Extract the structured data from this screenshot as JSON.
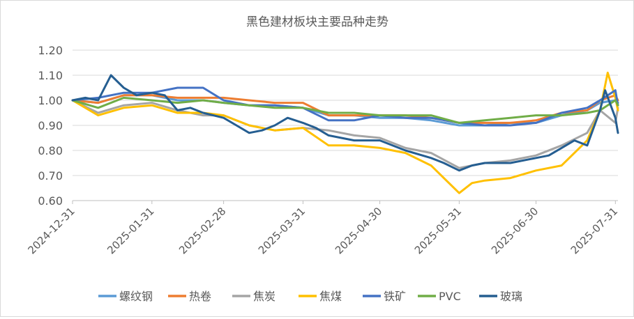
{
  "chart_data": {
    "type": "line",
    "title": "黑色建材板块主要品种走势",
    "xlabel": "",
    "ylabel": "",
    "ylim": [
      0.6,
      1.2
    ],
    "yticks": [
      "0.60",
      "0.70",
      "0.80",
      "0.90",
      "1.00",
      "1.10",
      "1.20"
    ],
    "xlim": [
      "2024-12-31",
      "2025-08-01"
    ],
    "xticks": [
      "2024-12-31",
      "2025-01-31",
      "2025-02-28",
      "2025-03-31",
      "2025-04-30",
      "2025-05-31",
      "2025-06-30",
      "2025-07-31"
    ],
    "grid": "horizontal",
    "legend_position": "bottom",
    "series": [
      {
        "name": "螺纹钢",
        "color": "#5b9bd5",
        "x": [
          "2024-12-31",
          "2025-01-10",
          "2025-01-20",
          "2025-01-31",
          "2025-02-10",
          "2025-02-20",
          "2025-02-28",
          "2025-03-10",
          "2025-03-20",
          "2025-03-31",
          "2025-04-10",
          "2025-04-20",
          "2025-04-30",
          "2025-05-10",
          "2025-05-20",
          "2025-05-31",
          "2025-06-10",
          "2025-06-20",
          "2025-06-30",
          "2025-07-10",
          "2025-07-20",
          "2025-07-25",
          "2025-07-31",
          "2025-08-01"
        ],
        "values": [
          1.0,
          0.99,
          1.02,
          1.02,
          1.0,
          1.0,
          0.99,
          0.98,
          0.98,
          0.97,
          0.94,
          0.94,
          0.93,
          0.93,
          0.92,
          0.9,
          0.9,
          0.91,
          0.91,
          0.94,
          0.96,
          0.99,
          1.0,
          0.99
        ]
      },
      {
        "name": "热卷",
        "color": "#ed7d31",
        "x": [
          "2024-12-31",
          "2025-01-10",
          "2025-01-20",
          "2025-01-31",
          "2025-02-10",
          "2025-02-20",
          "2025-02-28",
          "2025-03-10",
          "2025-03-20",
          "2025-03-31",
          "2025-04-10",
          "2025-04-20",
          "2025-04-30",
          "2025-05-10",
          "2025-05-20",
          "2025-05-31",
          "2025-06-10",
          "2025-06-20",
          "2025-06-30",
          "2025-07-10",
          "2025-07-20",
          "2025-07-25",
          "2025-07-31",
          "2025-08-01"
        ],
        "values": [
          1.0,
          0.99,
          1.02,
          1.02,
          1.01,
          1.01,
          1.01,
          1.0,
          0.99,
          0.99,
          0.94,
          0.94,
          0.94,
          0.94,
          0.93,
          0.91,
          0.91,
          0.91,
          0.92,
          0.95,
          0.96,
          1.0,
          1.02,
          1.0
        ]
      },
      {
        "name": "焦炭",
        "color": "#a5a5a5",
        "x": [
          "2024-12-31",
          "2025-01-10",
          "2025-01-20",
          "2025-01-31",
          "2025-02-10",
          "2025-02-20",
          "2025-02-28",
          "2025-03-10",
          "2025-03-20",
          "2025-03-31",
          "2025-04-10",
          "2025-04-20",
          "2025-04-30",
          "2025-05-10",
          "2025-05-20",
          "2025-05-31",
          "2025-06-10",
          "2025-06-20",
          "2025-06-30",
          "2025-07-10",
          "2025-07-20",
          "2025-07-25",
          "2025-07-31",
          "2025-08-01"
        ],
        "values": [
          1.0,
          0.95,
          0.98,
          0.99,
          0.96,
          0.94,
          0.94,
          0.9,
          0.88,
          0.89,
          0.88,
          0.86,
          0.85,
          0.81,
          0.79,
          0.73,
          0.75,
          0.76,
          0.78,
          0.82,
          0.87,
          0.96,
          0.91,
          0.97
        ]
      },
      {
        "name": "焦煤",
        "color": "#ffc000",
        "x": [
          "2024-12-31",
          "2025-01-10",
          "2025-01-20",
          "2025-01-31",
          "2025-02-10",
          "2025-02-20",
          "2025-02-28",
          "2025-03-10",
          "2025-03-20",
          "2025-03-31",
          "2025-04-10",
          "2025-04-20",
          "2025-04-30",
          "2025-05-10",
          "2025-05-20",
          "2025-05-31",
          "2025-06-05",
          "2025-06-10",
          "2025-06-20",
          "2025-06-30",
          "2025-07-10",
          "2025-07-20",
          "2025-07-25",
          "2025-07-28",
          "2025-07-31",
          "2025-08-01"
        ],
        "values": [
          1.0,
          0.94,
          0.97,
          0.98,
          0.95,
          0.95,
          0.94,
          0.9,
          0.88,
          0.89,
          0.82,
          0.82,
          0.81,
          0.79,
          0.74,
          0.63,
          0.67,
          0.68,
          0.69,
          0.72,
          0.74,
          0.84,
          0.96,
          1.11,
          1.01,
          0.96
        ]
      },
      {
        "name": "铁矿",
        "color": "#4472c4",
        "x": [
          "2024-12-31",
          "2025-01-10",
          "2025-01-20",
          "2025-01-31",
          "2025-02-10",
          "2025-02-20",
          "2025-02-28",
          "2025-03-10",
          "2025-03-20",
          "2025-03-31",
          "2025-04-10",
          "2025-04-20",
          "2025-04-30",
          "2025-05-10",
          "2025-05-20",
          "2025-05-31",
          "2025-06-10",
          "2025-06-20",
          "2025-06-30",
          "2025-07-10",
          "2025-07-20",
          "2025-07-25",
          "2025-07-31",
          "2025-08-01"
        ],
        "values": [
          1.0,
          1.01,
          1.03,
          1.03,
          1.05,
          1.05,
          1.0,
          0.98,
          0.98,
          0.97,
          0.92,
          0.92,
          0.94,
          0.93,
          0.93,
          0.91,
          0.9,
          0.9,
          0.91,
          0.95,
          0.97,
          1.0,
          1.04,
          0.98
        ]
      },
      {
        "name": "PVC",
        "color": "#70ad47",
        "x": [
          "2024-12-31",
          "2025-01-10",
          "2025-01-20",
          "2025-01-31",
          "2025-02-10",
          "2025-02-20",
          "2025-02-28",
          "2025-03-10",
          "2025-03-20",
          "2025-03-31",
          "2025-04-10",
          "2025-04-20",
          "2025-04-30",
          "2025-05-10",
          "2025-05-20",
          "2025-05-31",
          "2025-06-10",
          "2025-06-20",
          "2025-06-30",
          "2025-07-10",
          "2025-07-20",
          "2025-07-25",
          "2025-07-31",
          "2025-08-01"
        ],
        "values": [
          1.0,
          0.97,
          1.01,
          1.0,
          0.99,
          1.0,
          0.99,
          0.98,
          0.97,
          0.97,
          0.95,
          0.95,
          0.94,
          0.94,
          0.94,
          0.91,
          0.92,
          0.93,
          0.94,
          0.94,
          0.95,
          0.96,
          1.0,
          0.98
        ]
      },
      {
        "name": "玻璃",
        "color": "#255e91",
        "x": [
          "2024-12-31",
          "2025-01-05",
          "2025-01-10",
          "2025-01-15",
          "2025-01-20",
          "2025-01-25",
          "2025-01-31",
          "2025-02-05",
          "2025-02-10",
          "2025-02-15",
          "2025-02-20",
          "2025-02-28",
          "2025-03-05",
          "2025-03-10",
          "2025-03-15",
          "2025-03-20",
          "2025-03-25",
          "2025-03-31",
          "2025-04-05",
          "2025-04-10",
          "2025-04-20",
          "2025-04-30",
          "2025-05-10",
          "2025-05-20",
          "2025-05-25",
          "2025-05-31",
          "2025-06-05",
          "2025-06-10",
          "2025-06-20",
          "2025-06-30",
          "2025-07-05",
          "2025-07-10",
          "2025-07-15",
          "2025-07-20",
          "2025-07-25",
          "2025-07-27",
          "2025-07-31",
          "2025-08-01"
        ],
        "values": [
          1.0,
          1.01,
          1.0,
          1.1,
          1.05,
          1.02,
          1.03,
          1.02,
          0.96,
          0.97,
          0.95,
          0.93,
          0.9,
          0.87,
          0.88,
          0.9,
          0.93,
          0.91,
          0.89,
          0.86,
          0.84,
          0.84,
          0.8,
          0.77,
          0.75,
          0.72,
          0.74,
          0.75,
          0.75,
          0.77,
          0.78,
          0.81,
          0.84,
          0.82,
          0.96,
          1.04,
          0.93,
          0.87
        ]
      }
    ]
  }
}
